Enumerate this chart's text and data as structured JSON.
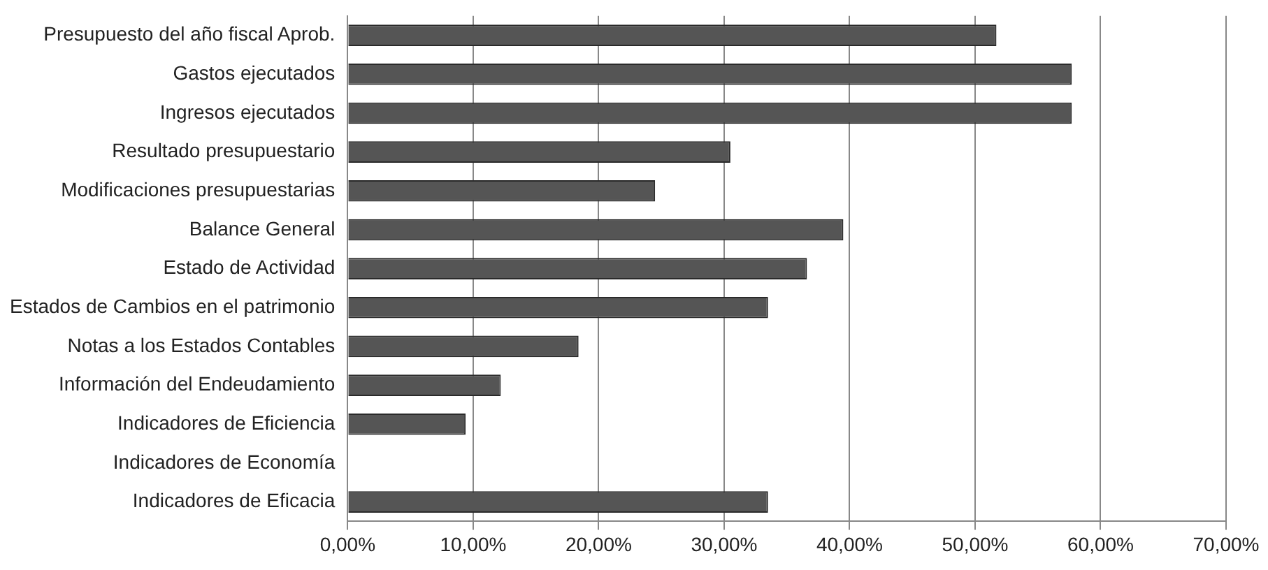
{
  "chart_data": {
    "type": "bar",
    "orientation": "horizontal",
    "categories": [
      "Presupuesto del año fiscal Aprob.",
      "Gastos ejecutados",
      "Ingresos ejecutados",
      "Resultado presupuestario",
      "Modificaciones presupuestarias",
      "Balance General",
      "Estado de Actividad",
      "Estados de Cambios en el patrimonio",
      "Notas a los Estados Contables",
      "Información del Endeudamiento",
      "Indicadores de Eficiencia",
      "Indicadores de Economía",
      "Indicadores de Eficacia"
    ],
    "values": [
      51.7,
      57.7,
      57.7,
      30.5,
      24.5,
      39.5,
      36.6,
      33.5,
      18.4,
      12.2,
      9.4,
      0,
      33.5
    ],
    "color": "#555555",
    "xlim": [
      0,
      70
    ],
    "xticks": [
      {
        "value": 0,
        "label": "0,00%"
      },
      {
        "value": 10,
        "label": "10,00%"
      },
      {
        "value": 20,
        "label": "20,00%"
      },
      {
        "value": 30,
        "label": "30,00%"
      },
      {
        "value": 40,
        "label": "40,00%"
      },
      {
        "value": 50,
        "label": "50,00%"
      },
      {
        "value": 60,
        "label": "60,00%"
      },
      {
        "value": 70,
        "label": "70,00%"
      }
    ],
    "grid": "x",
    "legend": false
  }
}
